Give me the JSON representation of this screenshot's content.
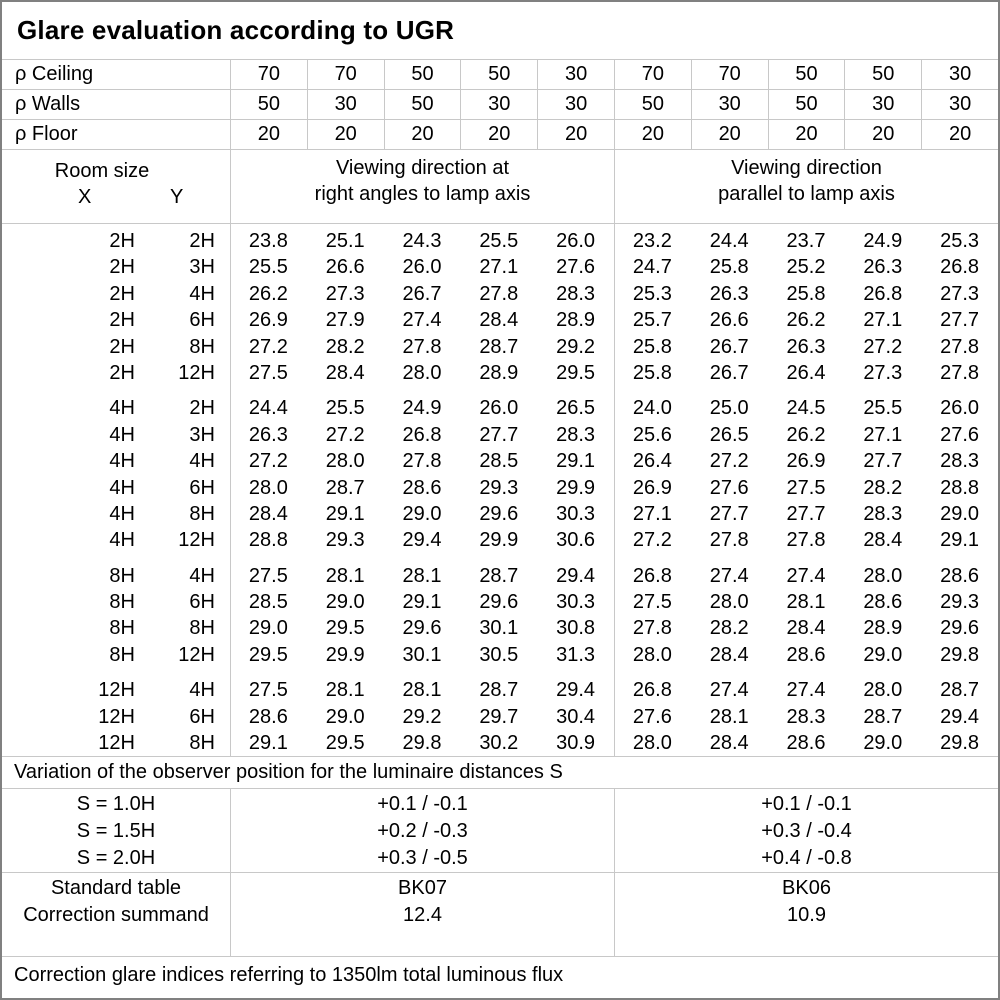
{
  "title": "Glare evaluation according to UGR",
  "reflectance_rows": [
    {
      "label": "ρ Ceiling",
      "values": [
        "70",
        "70",
        "50",
        "50",
        "30",
        "70",
        "70",
        "50",
        "50",
        "30"
      ]
    },
    {
      "label": "ρ Walls",
      "values": [
        "50",
        "30",
        "50",
        "30",
        "30",
        "50",
        "30",
        "50",
        "30",
        "30"
      ]
    },
    {
      "label": "ρ Floor",
      "values": [
        "20",
        "20",
        "20",
        "20",
        "20",
        "20",
        "20",
        "20",
        "20",
        "20"
      ]
    }
  ],
  "column_headers": {
    "room_size": "Room size",
    "x": "X",
    "y": "Y",
    "group1_line1": "Viewing direction at",
    "group1_line2": "right angles to lamp axis",
    "group2_line1": "Viewing direction",
    "group2_line2": "parallel to lamp axis"
  },
  "ugr_blocks": [
    {
      "rows": [
        {
          "x": "2H",
          "y": "2H",
          "values": [
            "23.8",
            "25.1",
            "24.3",
            "25.5",
            "26.0",
            "23.2",
            "24.4",
            "23.7",
            "24.9",
            "25.3"
          ]
        },
        {
          "x": "2H",
          "y": "3H",
          "values": [
            "25.5",
            "26.6",
            "26.0",
            "27.1",
            "27.6",
            "24.7",
            "25.8",
            "25.2",
            "26.3",
            "26.8"
          ]
        },
        {
          "x": "2H",
          "y": "4H",
          "values": [
            "26.2",
            "27.3",
            "26.7",
            "27.8",
            "28.3",
            "25.3",
            "26.3",
            "25.8",
            "26.8",
            "27.3"
          ]
        },
        {
          "x": "2H",
          "y": "6H",
          "values": [
            "26.9",
            "27.9",
            "27.4",
            "28.4",
            "28.9",
            "25.7",
            "26.6",
            "26.2",
            "27.1",
            "27.7"
          ]
        },
        {
          "x": "2H",
          "y": "8H",
          "values": [
            "27.2",
            "28.2",
            "27.8",
            "28.7",
            "29.2",
            "25.8",
            "26.7",
            "26.3",
            "27.2",
            "27.8"
          ]
        },
        {
          "x": "2H",
          "y": "12H",
          "values": [
            "27.5",
            "28.4",
            "28.0",
            "28.9",
            "29.5",
            "25.8",
            "26.7",
            "26.4",
            "27.3",
            "27.8"
          ]
        }
      ]
    },
    {
      "rows": [
        {
          "x": "4H",
          "y": "2H",
          "values": [
            "24.4",
            "25.5",
            "24.9",
            "26.0",
            "26.5",
            "24.0",
            "25.0",
            "24.5",
            "25.5",
            "26.0"
          ]
        },
        {
          "x": "4H",
          "y": "3H",
          "values": [
            "26.3",
            "27.2",
            "26.8",
            "27.7",
            "28.3",
            "25.6",
            "26.5",
            "26.2",
            "27.1",
            "27.6"
          ]
        },
        {
          "x": "4H",
          "y": "4H",
          "values": [
            "27.2",
            "28.0",
            "27.8",
            "28.5",
            "29.1",
            "26.4",
            "27.2",
            "26.9",
            "27.7",
            "28.3"
          ]
        },
        {
          "x": "4H",
          "y": "6H",
          "values": [
            "28.0",
            "28.7",
            "28.6",
            "29.3",
            "29.9",
            "26.9",
            "27.6",
            "27.5",
            "28.2",
            "28.8"
          ]
        },
        {
          "x": "4H",
          "y": "8H",
          "values": [
            "28.4",
            "29.1",
            "29.0",
            "29.6",
            "30.3",
            "27.1",
            "27.7",
            "27.7",
            "28.3",
            "29.0"
          ]
        },
        {
          "x": "4H",
          "y": "12H",
          "values": [
            "28.8",
            "29.3",
            "29.4",
            "29.9",
            "30.6",
            "27.2",
            "27.8",
            "27.8",
            "28.4",
            "29.1"
          ]
        }
      ]
    },
    {
      "rows": [
        {
          "x": "8H",
          "y": "4H",
          "values": [
            "27.5",
            "28.1",
            "28.1",
            "28.7",
            "29.4",
            "26.8",
            "27.4",
            "27.4",
            "28.0",
            "28.6"
          ]
        },
        {
          "x": "8H",
          "y": "6H",
          "values": [
            "28.5",
            "29.0",
            "29.1",
            "29.6",
            "30.3",
            "27.5",
            "28.0",
            "28.1",
            "28.6",
            "29.3"
          ]
        },
        {
          "x": "8H",
          "y": "8H",
          "values": [
            "29.0",
            "29.5",
            "29.6",
            "30.1",
            "30.8",
            "27.8",
            "28.2",
            "28.4",
            "28.9",
            "29.6"
          ]
        },
        {
          "x": "8H",
          "y": "12H",
          "values": [
            "29.5",
            "29.9",
            "30.1",
            "30.5",
            "31.3",
            "28.0",
            "28.4",
            "28.6",
            "29.0",
            "29.8"
          ]
        }
      ]
    },
    {
      "rows": [
        {
          "x": "12H",
          "y": "4H",
          "values": [
            "27.5",
            "28.1",
            "28.1",
            "28.7",
            "29.4",
            "26.8",
            "27.4",
            "27.4",
            "28.0",
            "28.7"
          ]
        },
        {
          "x": "12H",
          "y": "6H",
          "values": [
            "28.6",
            "29.0",
            "29.2",
            "29.7",
            "30.4",
            "27.6",
            "28.1",
            "28.3",
            "28.7",
            "29.4"
          ]
        },
        {
          "x": "12H",
          "y": "8H",
          "values": [
            "29.1",
            "29.5",
            "29.8",
            "30.2",
            "30.9",
            "28.0",
            "28.4",
            "28.6",
            "29.0",
            "29.8"
          ]
        }
      ]
    }
  ],
  "variation_note": "Variation of the observer position for the luminaire distances S",
  "spacing_rows": [
    {
      "label": "S = 1.0H",
      "group1": "+0.1 / -0.1",
      "group2": "+0.1 / -0.1"
    },
    {
      "label": "S = 1.5H",
      "group1": "+0.2 / -0.3",
      "group2": "+0.3 / -0.4"
    },
    {
      "label": "S = 2.0H",
      "group1": "+0.3 / -0.5",
      "group2": "+0.4 / -0.8"
    }
  ],
  "standard_block": {
    "row1_label": "Standard table",
    "row1_group1": "BK07",
    "row1_group2": "BK06",
    "row2_label": "Correction summand",
    "row2_group1": "12.4",
    "row2_group2": "10.9"
  },
  "footer_note": "Correction glare indices referring to 1350lm total luminous flux",
  "colors": {
    "background": "#ffffff",
    "text": "#000000",
    "grid_line": "#c8c8c8",
    "outer_border": "#808080"
  }
}
